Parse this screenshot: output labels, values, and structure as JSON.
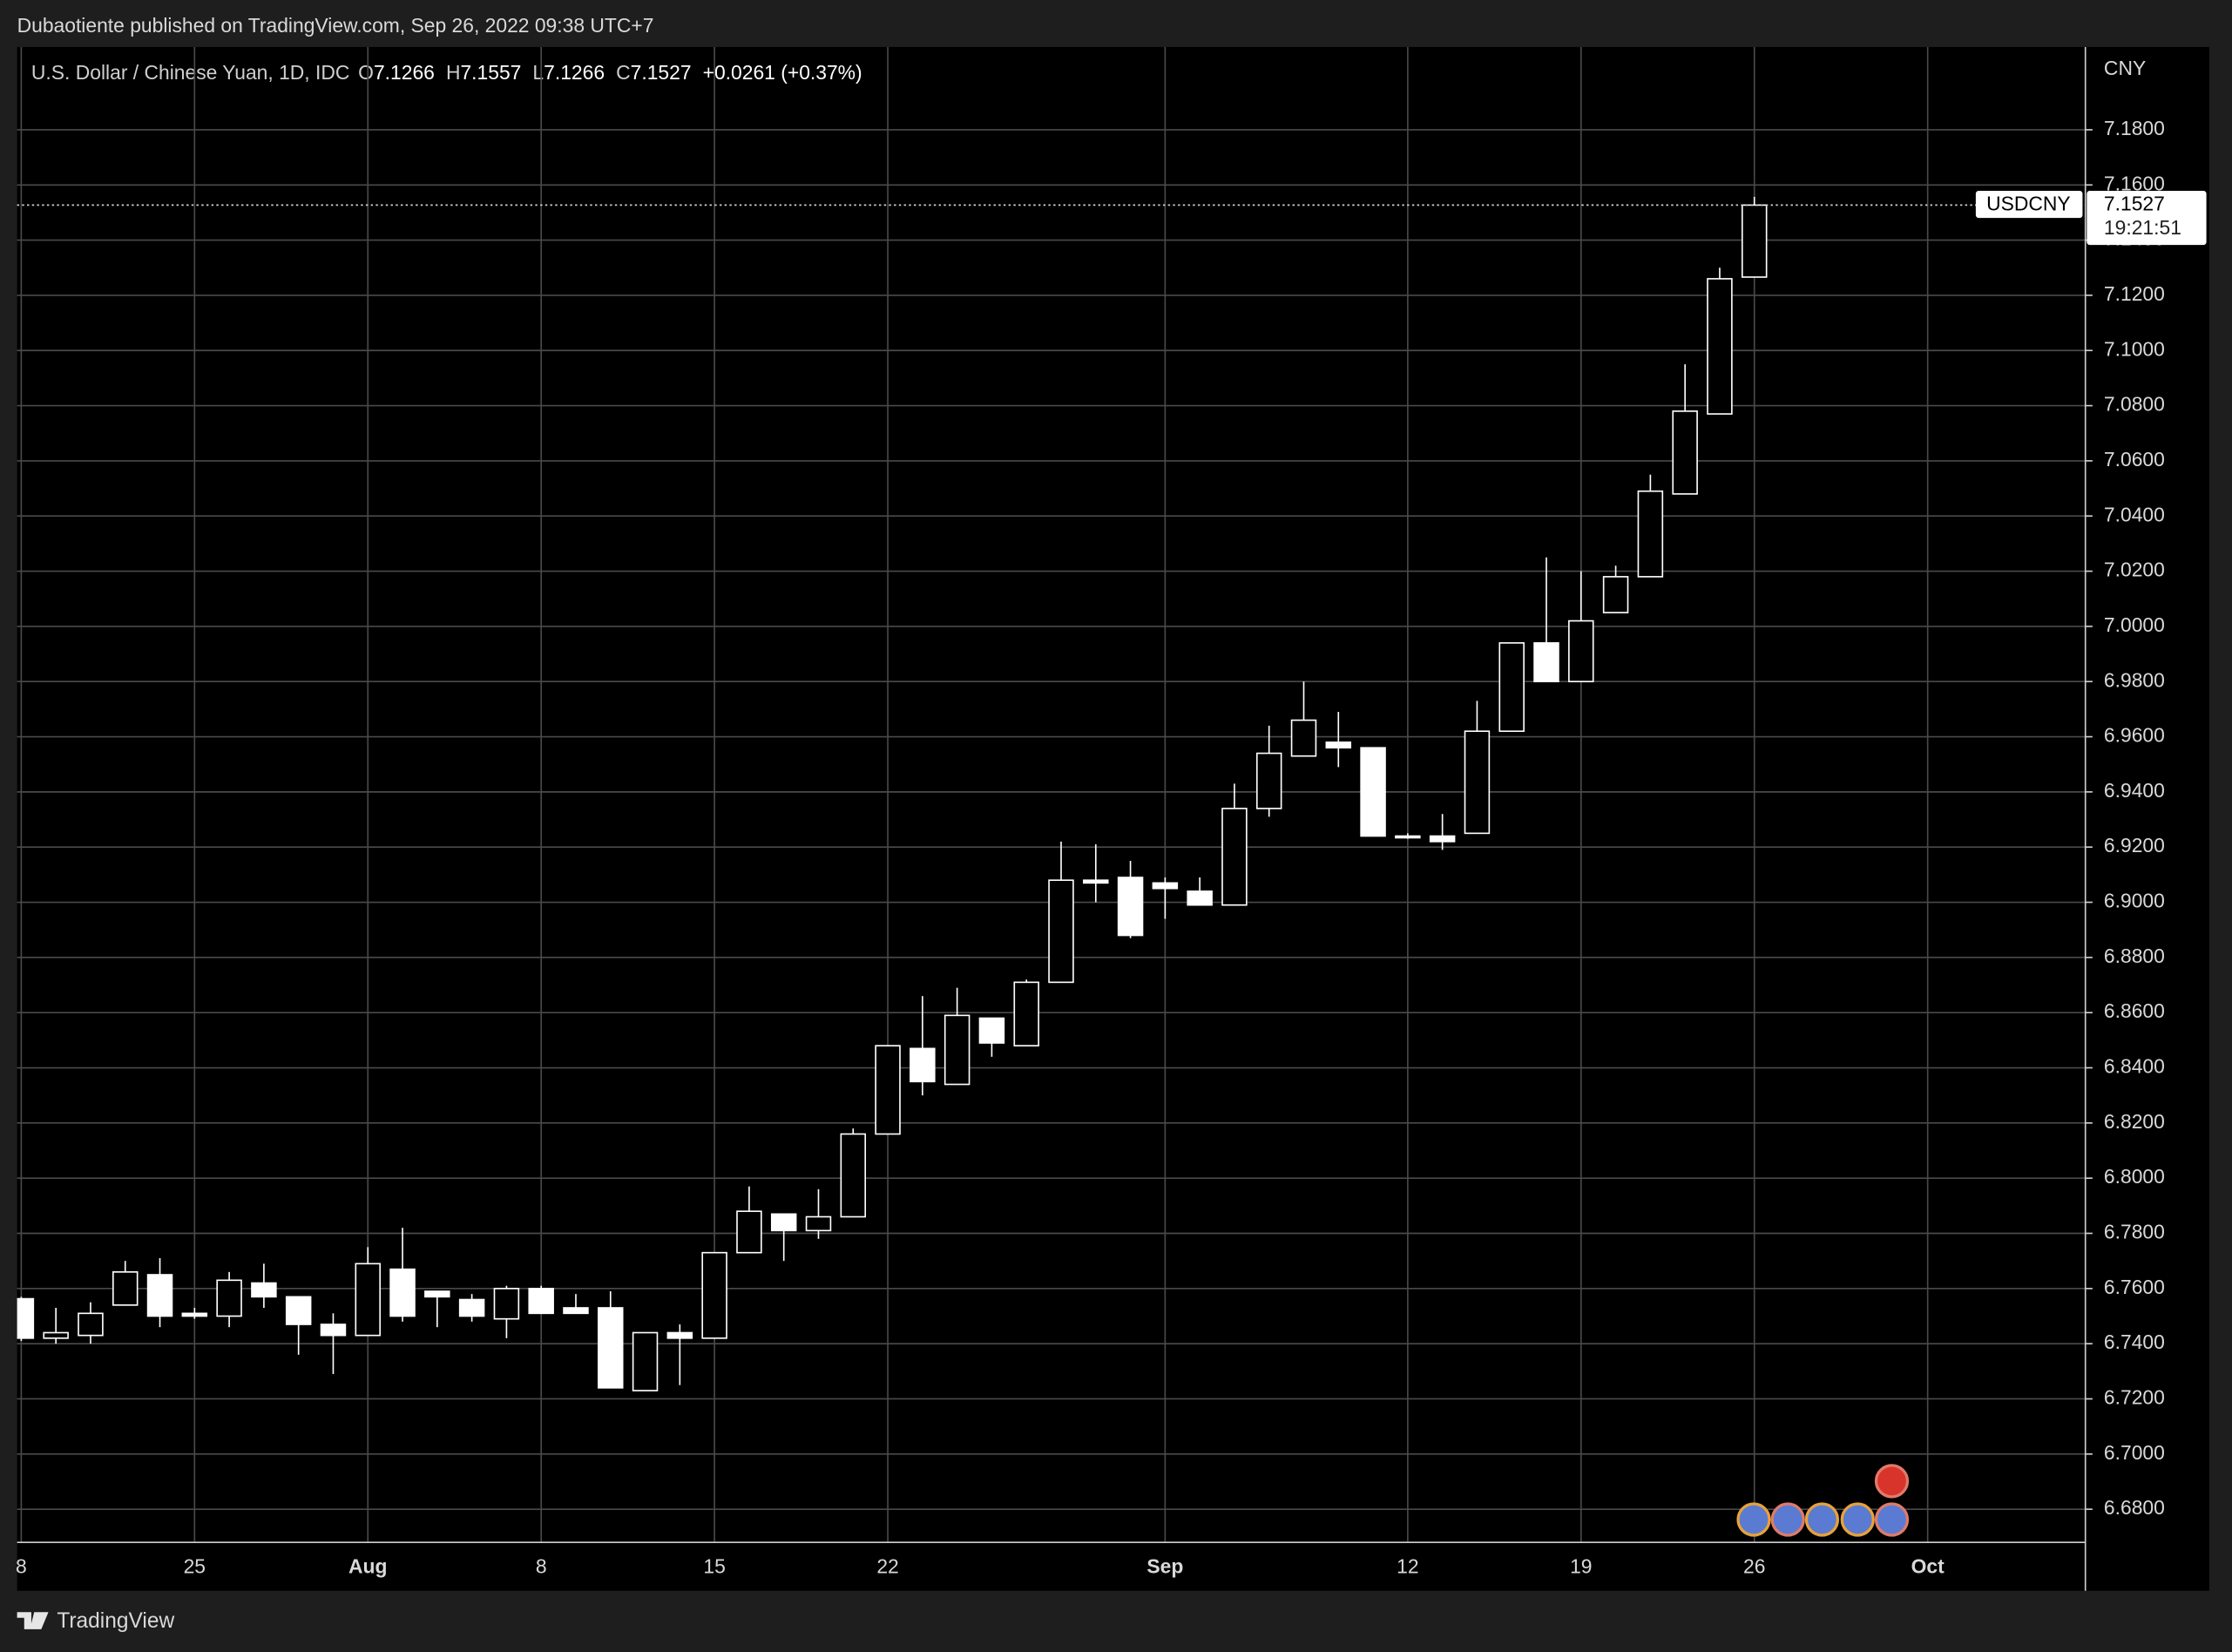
{
  "header": "Dubaotiente published on TradingView.com, Sep 26, 2022 09:38 UTC+7",
  "footer": "TradingView",
  "chart_data": {
    "type": "candlestick",
    "title": "U.S. Dollar / Chinese Yuan, 1D, IDC",
    "ohlc_labels": [
      "O",
      "H",
      "L",
      "C"
    ],
    "change_label": "+0.0261 (+0.37%)",
    "symbol": "USDCNY",
    "countdown": "19:21:51",
    "y_axis_label": "CNY",
    "color": "#ffffff",
    "grid": true,
    "xlim": [
      -0.12,
      59.55
    ],
    "ylim": [
      6.668,
      7.21
    ],
    "xticks": [
      {
        "value": 0,
        "label": "8"
      },
      {
        "value": 5,
        "label": "25"
      },
      {
        "value": 10,
        "label": "Aug"
      },
      {
        "value": 15,
        "label": "8"
      },
      {
        "value": 20,
        "label": "15"
      },
      {
        "value": 25,
        "label": "22"
      },
      {
        "value": 33,
        "label": "Sep"
      },
      {
        "value": 40,
        "label": "12"
      },
      {
        "value": 45,
        "label": "19"
      },
      {
        "value": 50,
        "label": "26"
      },
      {
        "value": 55,
        "label": "Oct"
      }
    ],
    "yticks": [
      {
        "value": 6.68,
        "label": "6.6800"
      },
      {
        "value": 6.7,
        "label": "6.7000"
      },
      {
        "value": 6.72,
        "label": "6.7200"
      },
      {
        "value": 6.74,
        "label": "6.7400"
      },
      {
        "value": 6.76,
        "label": "6.7600"
      },
      {
        "value": 6.78,
        "label": "6.7800"
      },
      {
        "value": 6.8,
        "label": "6.8000"
      },
      {
        "value": 6.82,
        "label": "6.8200"
      },
      {
        "value": 6.84,
        "label": "6.8400"
      },
      {
        "value": 6.86,
        "label": "6.8600"
      },
      {
        "value": 6.88,
        "label": "6.8800"
      },
      {
        "value": 6.9,
        "label": "6.9000"
      },
      {
        "value": 6.92,
        "label": "6.9200"
      },
      {
        "value": 6.94,
        "label": "6.9400"
      },
      {
        "value": 6.96,
        "label": "6.9600"
      },
      {
        "value": 6.98,
        "label": "6.9800"
      },
      {
        "value": 7.0,
        "label": "7.0000"
      },
      {
        "value": 7.02,
        "label": "7.0200"
      },
      {
        "value": 7.04,
        "label": "7.0400"
      },
      {
        "value": 7.06,
        "label": "7.0600"
      },
      {
        "value": 7.08,
        "label": "7.0800"
      },
      {
        "value": 7.1,
        "label": "7.1000"
      },
      {
        "value": 7.12,
        "label": "7.1200"
      },
      {
        "value": 7.14,
        "label": "7.1400"
      },
      {
        "value": 7.16,
        "label": "7.1600"
      },
      {
        "value": 7.18,
        "label": "7.1800"
      }
    ],
    "open": [
      6.7563,
      6.742,
      6.743,
      6.754,
      6.765,
      6.751,
      6.75,
      6.762,
      6.757,
      6.747,
      6.743,
      6.767,
      6.759,
      6.756,
      6.749,
      6.76,
      6.753,
      6.753,
      6.723,
      6.744,
      6.742,
      6.773,
      6.787,
      6.781,
      6.786,
      6.816,
      6.847,
      6.834,
      6.858,
      6.848,
      6.871,
      6.908,
      6.909,
      6.907,
      6.904,
      6.899,
      6.934,
      6.953,
      6.958,
      6.956,
      6.924,
      6.924,
      6.925,
      6.962,
      6.994,
      6.98,
      7.005,
      7.018,
      7.048,
      7.077,
      7.1266
    ],
    "high": [
      6.757,
      6.753,
      6.755,
      6.77,
      6.771,
      6.753,
      6.766,
      6.769,
      6.757,
      6.751,
      6.775,
      6.782,
      6.759,
      6.758,
      6.761,
      6.761,
      6.758,
      6.759,
      6.744,
      6.747,
      6.773,
      6.797,
      6.787,
      6.796,
      6.818,
      6.848,
      6.866,
      6.869,
      6.858,
      6.872,
      6.922,
      6.921,
      6.915,
      6.909,
      6.909,
      6.943,
      6.964,
      6.98,
      6.969,
      6.956,
      6.925,
      6.932,
      6.973,
      6.994,
      7.025,
      7.02,
      7.022,
      7.055,
      7.095,
      7.13,
      7.1557
    ],
    "low": [
      6.741,
      6.74,
      6.74,
      6.754,
      6.746,
      6.749,
      6.746,
      6.753,
      6.736,
      6.729,
      6.743,
      6.748,
      6.746,
      6.748,
      6.742,
      6.751,
      6.751,
      6.724,
      6.723,
      6.725,
      6.742,
      6.773,
      6.77,
      6.778,
      6.786,
      6.816,
      6.83,
      6.834,
      6.844,
      6.848,
      6.871,
      6.9,
      6.887,
      6.894,
      6.899,
      6.899,
      6.931,
      6.953,
      6.949,
      6.924,
      6.923,
      6.919,
      6.925,
      6.962,
      6.98,
      6.98,
      7.005,
      7.018,
      7.048,
      7.077,
      7.1266
    ],
    "close": [
      6.742,
      6.744,
      6.751,
      6.766,
      6.75,
      6.75,
      6.763,
      6.757,
      6.747,
      6.743,
      6.769,
      6.75,
      6.757,
      6.75,
      6.76,
      6.751,
      6.751,
      6.724,
      6.744,
      6.742,
      6.773,
      6.788,
      6.781,
      6.786,
      6.816,
      6.848,
      6.835,
      6.859,
      6.849,
      6.871,
      6.908,
      6.907,
      6.888,
      6.905,
      6.899,
      6.934,
      6.954,
      6.966,
      6.956,
      6.924,
      6.9235,
      6.922,
      6.962,
      6.994,
      6.98,
      7.002,
      7.018,
      7.049,
      7.078,
      7.126,
      7.1527
    ]
  }
}
